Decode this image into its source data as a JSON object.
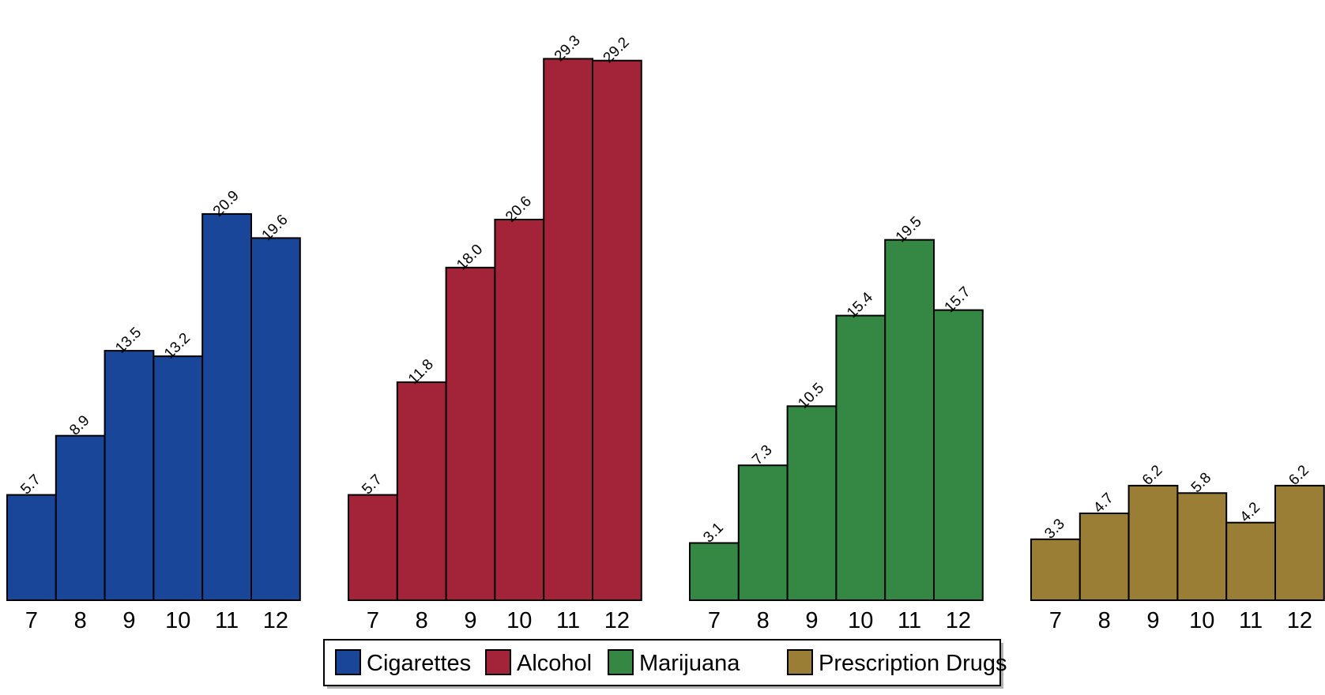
{
  "chart_data": {
    "type": "bar",
    "categories": [
      "7",
      "8",
      "9",
      "10",
      "11",
      "12"
    ],
    "series": [
      {
        "name": "Cigarettes",
        "color": "#1a4699",
        "values": [
          5.7,
          8.9,
          13.5,
          13.2,
          20.9,
          19.6
        ]
      },
      {
        "name": "Alcohol",
        "color": "#a32438",
        "values": [
          5.7,
          11.8,
          18.0,
          20.6,
          29.3,
          29.2
        ]
      },
      {
        "name": "Marijuana",
        "color": "#358843",
        "values": [
          3.1,
          7.3,
          10.5,
          15.4,
          19.5,
          15.7
        ]
      },
      {
        "name": "Prescription Drugs",
        "color": "#9b7e36",
        "values": [
          3.3,
          4.7,
          6.2,
          5.8,
          4.2,
          6.2
        ]
      }
    ],
    "value_labels": [
      [
        "5.7",
        "8.9",
        "13.5",
        "13.2",
        "20.9",
        "19.6"
      ],
      [
        "5.7",
        "11.8",
        "18.0",
        "20.6",
        "29.3",
        "29.2"
      ],
      [
        "3.1",
        "7.3",
        "10.5",
        "15.4",
        "19.5",
        "15.7"
      ],
      [
        "3.3",
        "4.7",
        "6.2",
        "5.8",
        "4.2",
        "6.2"
      ]
    ],
    "title": "",
    "xlabel": "",
    "ylabel": "",
    "ylim": [
      0,
      29.3
    ],
    "grid": false,
    "legend_position": "bottom"
  }
}
